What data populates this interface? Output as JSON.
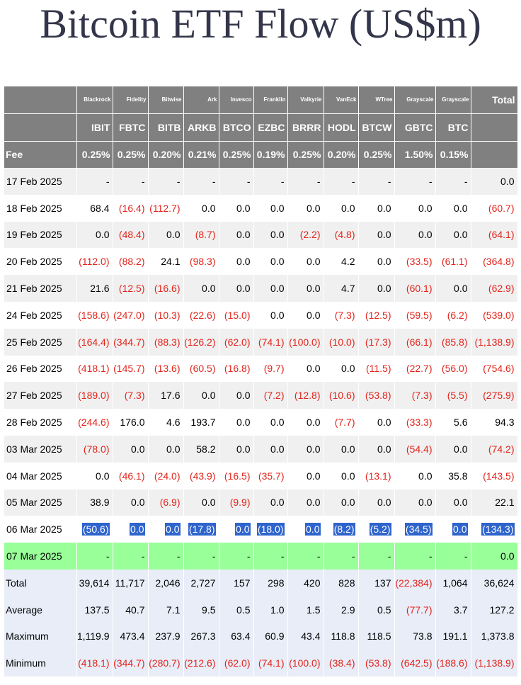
{
  "title": "Bitcoin ETF Flow (US$m)",
  "issuers": [
    "Blackrock",
    "Fidelity",
    "Bitwise",
    "Ark",
    "Invesco",
    "Franklin",
    "Valkyrie",
    "VanEck",
    "WTree",
    "Grayscale",
    "Grayscale"
  ],
  "total_label": "Total",
  "tickers": [
    "IBIT",
    "FBTC",
    "BITB",
    "ARKB",
    "BTCO",
    "EZBC",
    "BRRR",
    "HODL",
    "BTCW",
    "GBTC",
    "BTC"
  ],
  "fee_label": "Fee",
  "fees": [
    "0.25%",
    "0.25%",
    "0.20%",
    "0.21%",
    "0.25%",
    "0.19%",
    "0.25%",
    "0.20%",
    "0.25%",
    "1.50%",
    "0.15%"
  ],
  "rows": [
    {
      "date": "17 Feb 2025",
      "cells": [
        "-",
        "-",
        "-",
        "-",
        "-",
        "-",
        "-",
        "-",
        "-",
        "-",
        "-",
        "0.0"
      ]
    },
    {
      "date": "18 Feb 2025",
      "cells": [
        "68.4",
        "(16.4)",
        "(112.7)",
        "0.0",
        "0.0",
        "0.0",
        "0.0",
        "0.0",
        "0.0",
        "0.0",
        "0.0",
        "(60.7)"
      ]
    },
    {
      "date": "19 Feb 2025",
      "cells": [
        "0.0",
        "(48.4)",
        "0.0",
        "(8.7)",
        "0.0",
        "0.0",
        "(2.2)",
        "(4.8)",
        "0.0",
        "0.0",
        "0.0",
        "(64.1)"
      ]
    },
    {
      "date": "20 Feb 2025",
      "cells": [
        "(112.0)",
        "(88.2)",
        "24.1",
        "(98.3)",
        "0.0",
        "0.0",
        "0.0",
        "4.2",
        "0.0",
        "(33.5)",
        "(61.1)",
        "(364.8)"
      ]
    },
    {
      "date": "21 Feb 2025",
      "cells": [
        "21.6",
        "(12.5)",
        "(16.6)",
        "0.0",
        "0.0",
        "0.0",
        "0.0",
        "4.7",
        "0.0",
        "(60.1)",
        "0.0",
        "(62.9)"
      ]
    },
    {
      "date": "24 Feb 2025",
      "cells": [
        "(158.6)",
        "(247.0)",
        "(10.3)",
        "(22.6)",
        "(15.0)",
        "0.0",
        "0.0",
        "(7.3)",
        "(12.5)",
        "(59.5)",
        "(6.2)",
        "(539.0)"
      ]
    },
    {
      "date": "25 Feb 2025",
      "cells": [
        "(164.4)",
        "(344.7)",
        "(88.3)",
        "(126.2)",
        "(62.0)",
        "(74.1)",
        "(100.0)",
        "(10.0)",
        "(17.3)",
        "(66.1)",
        "(85.8)",
        "(1,138.9)"
      ]
    },
    {
      "date": "26 Feb 2025",
      "cells": [
        "(418.1)",
        "(145.7)",
        "(13.6)",
        "(60.5)",
        "(16.8)",
        "(9.7)",
        "0.0",
        "0.0",
        "(11.5)",
        "(22.7)",
        "(56.0)",
        "(754.6)"
      ]
    },
    {
      "date": "27 Feb 2025",
      "cells": [
        "(189.0)",
        "(7.3)",
        "17.6",
        "0.0",
        "0.0",
        "(7.2)",
        "(12.8)",
        "(10.6)",
        "(53.8)",
        "(7.3)",
        "(5.5)",
        "(275.9)"
      ]
    },
    {
      "date": "28 Feb 2025",
      "cells": [
        "(244.6)",
        "176.0",
        "4.6",
        "193.7",
        "0.0",
        "0.0",
        "0.0",
        "(7.7)",
        "0.0",
        "(33.3)",
        "5.6",
        "94.3"
      ]
    },
    {
      "date": "03 Mar 2025",
      "cells": [
        "(78.0)",
        "0.0",
        "0.0",
        "58.2",
        "0.0",
        "0.0",
        "0.0",
        "0.0",
        "0.0",
        "(54.4)",
        "0.0",
        "(74.2)"
      ]
    },
    {
      "date": "04 Mar 2025",
      "cells": [
        "0.0",
        "(46.1)",
        "(24.0)",
        "(43.9)",
        "(16.5)",
        "(35.7)",
        "0.0",
        "0.0",
        "(13.1)",
        "0.0",
        "35.8",
        "(143.5)"
      ]
    },
    {
      "date": "05 Mar 2025",
      "cells": [
        "38.9",
        "0.0",
        "(6.9)",
        "0.0",
        "(9.9)",
        "0.0",
        "0.0",
        "0.0",
        "0.0",
        "0.0",
        "0.0",
        "22.1"
      ]
    },
    {
      "date": "06 Mar 2025",
      "cells": [
        "(50.6)",
        "0.0",
        "0.0",
        "(17.8)",
        "0.0",
        "(18.0)",
        "0.0",
        "(8.2)",
        "(5.2)",
        "(34.5)",
        "0.0",
        "(134.3)"
      ]
    },
    {
      "date": "07 Mar 2025",
      "cells": [
        "-",
        "-",
        "-",
        "-",
        "-",
        "-",
        "-",
        "-",
        "-",
        "-",
        "-",
        "0.0"
      ]
    }
  ],
  "stats": [
    {
      "label": "Total",
      "cells": [
        "39,614",
        "11,717",
        "2,046",
        "2,727",
        "157",
        "298",
        "420",
        "828",
        "137",
        "(22,384)",
        "1,064",
        "36,624"
      ]
    },
    {
      "label": "Average",
      "cells": [
        "137.5",
        "40.7",
        "7.1",
        "9.5",
        "0.5",
        "1.0",
        "1.5",
        "2.9",
        "0.5",
        "(77.7)",
        "3.7",
        "127.2"
      ]
    },
    {
      "label": "Maximum",
      "cells": [
        "1,119.9",
        "473.4",
        "237.9",
        "267.3",
        "63.4",
        "60.9",
        "43.4",
        "118.8",
        "118.5",
        "73.8",
        "191.1",
        "1,373.8"
      ]
    },
    {
      "label": "Minimum",
      "cells": [
        "(418.1)",
        "(344.7)",
        "(280.7)",
        "(212.6)",
        "(62.0)",
        "(74.1)",
        "(100.0)",
        "(38.4)",
        "(53.8)",
        "(642.5)",
        "(188.6)",
        "(1,138.9)"
      ]
    }
  ],
  "colors": {
    "header_bg": "#808080",
    "negative": "#e3241b",
    "highlight": "#2f64cc",
    "today_row": "#99ff99",
    "stats_bg": "#e8edf8",
    "title": "#33364a"
  }
}
